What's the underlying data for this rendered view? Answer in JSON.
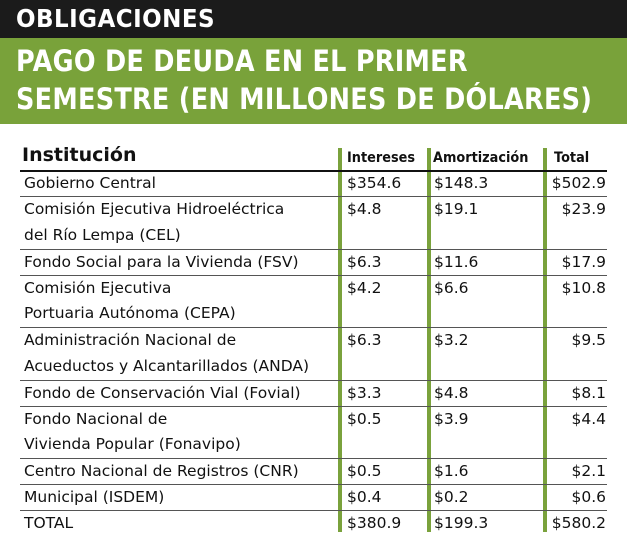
{
  "section_label": "OBLIGACIONES",
  "title_line1": "PAGO DE DEUDA EN EL PRIMER",
  "title_line2": "SEMESTRE (EN MILLONES DE DÓLARES)",
  "colors": {
    "top_bar": "#1b1b1b",
    "title_bar": "#79a23a",
    "column_rule": "#7aa23c"
  },
  "table": {
    "headers": [
      "Institución",
      "Intereses",
      "Amortización",
      "Total"
    ],
    "rows": [
      {
        "name": [
          "Gobierno Central"
        ],
        "interest": "$354.6",
        "amortization": "$148.3",
        "total": "$502.9"
      },
      {
        "name": [
          "Comisión Ejecutiva Hidroeléctrica",
          "del Río Lempa (CEL)"
        ],
        "interest": "$4.8",
        "amortization": "$19.1",
        "total": "$23.9"
      },
      {
        "name": [
          "Fondo Social para la Vivienda (FSV)"
        ],
        "interest": "$6.3",
        "amortization": "$11.6",
        "total": "$17.9"
      },
      {
        "name": [
          "Comisión Ejecutiva",
          "Portuaria Autónoma (CEPA)"
        ],
        "interest": "$4.2",
        "amortization": "$6.6",
        "total": "$10.8"
      },
      {
        "name": [
          "Administración Nacional de",
          "Acueductos y Alcantarillados (ANDA)"
        ],
        "interest": "$6.3",
        "amortization": "$3.2",
        "total": "$9.5"
      },
      {
        "name": [
          "Fondo de Conservación Vial (Fovial)"
        ],
        "interest": "$3.3",
        "amortization": "$4.8",
        "total": "$8.1"
      },
      {
        "name": [
          "Fondo Nacional de",
          "Vivienda Popular (Fonavipo)"
        ],
        "interest": "$0.5",
        "amortization": "$3.9",
        "total": "$4.4"
      },
      {
        "name": [
          "Centro Nacional de Registros (CNR)"
        ],
        "interest": "$0.5",
        "amortization": "$1.6",
        "total": "$2.1"
      },
      {
        "name": [
          "Municipal (ISDEM)"
        ],
        "interest": "$0.4",
        "amortization": "$0.2",
        "total": "$0.6"
      },
      {
        "name": [
          "TOTAL"
        ],
        "interest": "$380.9",
        "amortization": "$199.3",
        "total": "$580.2"
      }
    ]
  }
}
